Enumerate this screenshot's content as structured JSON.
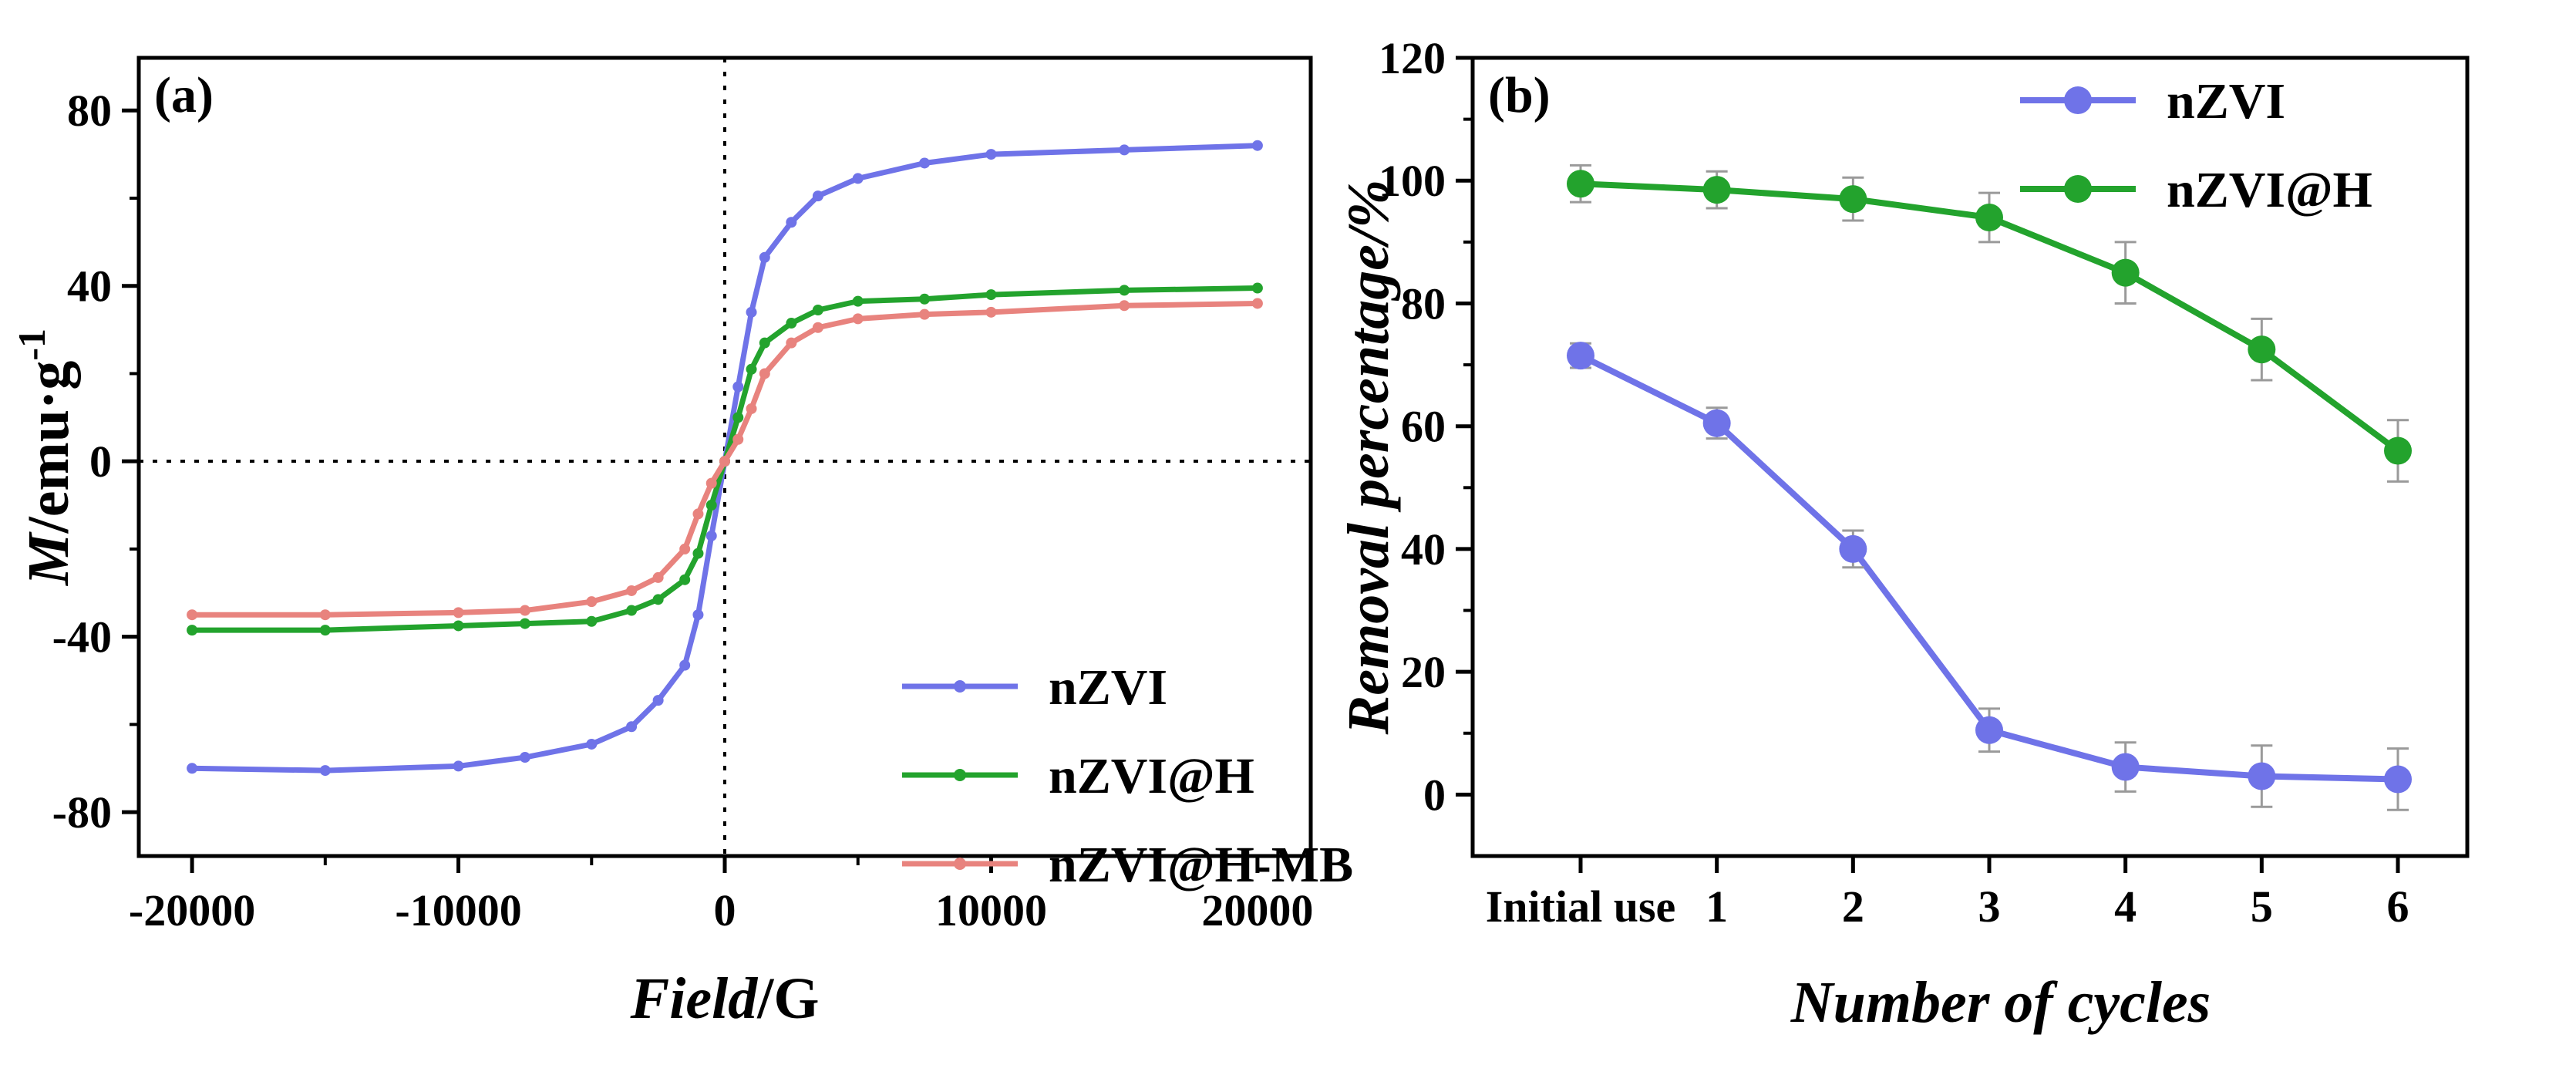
{
  "chart_data": [
    {
      "type": "line",
      "panel_label": "(a)",
      "xlabel_italic": "Field",
      "xlabel_rest": "/G",
      "ylabel_italic": "M",
      "ylabel_rest": "/emu·g",
      "ylabel_sup": "-1",
      "xlim": [
        -22000,
        22000
      ],
      "ylim": [
        -90,
        92
      ],
      "xticks": [
        -20000,
        -10000,
        0,
        10000,
        20000
      ],
      "yticks": [
        -80,
        -40,
        0,
        40,
        80
      ],
      "grid": false,
      "reference_lines": [
        "x=0 dotted",
        "y=0 dotted"
      ],
      "legend_position": "bottom-right",
      "series": [
        {
          "name": "nZVI",
          "color": "#6f73e8",
          "x": [
            -20000,
            -15000,
            -10000,
            -7500,
            -5000,
            -3500,
            -2500,
            -1500,
            -1000,
            -500,
            0,
            500,
            1000,
            1500,
            2500,
            3500,
            5000,
            7500,
            10000,
            15000,
            20000
          ],
          "y": [
            -70,
            -70.5,
            -69.5,
            -67.5,
            -64.5,
            -60.5,
            -54.5,
            -46.5,
            -35,
            -17,
            0,
            17,
            34,
            46.5,
            54.5,
            60.5,
            64.5,
            68,
            70,
            71,
            72
          ]
        },
        {
          "name": "nZVI@H",
          "color": "#23a32d",
          "x": [
            -20000,
            -15000,
            -10000,
            -7500,
            -5000,
            -3500,
            -2500,
            -1500,
            -1000,
            -500,
            0,
            500,
            1000,
            1500,
            2500,
            3500,
            5000,
            7500,
            10000,
            15000,
            20000
          ],
          "y": [
            -38.5,
            -38.5,
            -37.5,
            -37,
            -36.5,
            -34,
            -31.5,
            -27,
            -21,
            -10,
            0,
            10,
            21,
            27,
            31.5,
            34.5,
            36.5,
            37,
            38,
            39,
            39.5
          ]
        },
        {
          "name": "nZVI@H-MB",
          "color": "#e8837e",
          "x": [
            -20000,
            -15000,
            -10000,
            -7500,
            -5000,
            -3500,
            -2500,
            -1500,
            -1000,
            -500,
            0,
            500,
            1000,
            1500,
            2500,
            3500,
            5000,
            7500,
            10000,
            15000,
            20000
          ],
          "y": [
            -35,
            -35,
            -34.5,
            -34,
            -32,
            -29.5,
            -26.5,
            -20,
            -12,
            -5,
            0,
            5,
            12,
            20,
            27,
            30.5,
            32.5,
            33.5,
            34,
            35.5,
            36
          ]
        }
      ]
    },
    {
      "type": "line",
      "panel_label": "(b)",
      "xlabel": "Number of cycles",
      "ylabel": "Removal percentage/%",
      "categories": [
        "Initial use",
        "1",
        "2",
        "3",
        "4",
        "5",
        "6"
      ],
      "ylim": [
        -10,
        120
      ],
      "yticks": [
        0,
        20,
        40,
        60,
        80,
        100,
        120
      ],
      "grid": false,
      "legend_position": "top-right",
      "series": [
        {
          "name": "nZVI",
          "color": "#6f73e8",
          "values": [
            71.5,
            60.5,
            40,
            10.5,
            4.5,
            3,
            2.5
          ],
          "errors": [
            2,
            2.5,
            3,
            3.5,
            4,
            5,
            5
          ]
        },
        {
          "name": "nZVI@H",
          "color": "#23a32d",
          "values": [
            99.5,
            98.5,
            97,
            94,
            85,
            72.5,
            56
          ],
          "errors": [
            3,
            3,
            3.5,
            4,
            5,
            5,
            5
          ]
        }
      ]
    }
  ]
}
